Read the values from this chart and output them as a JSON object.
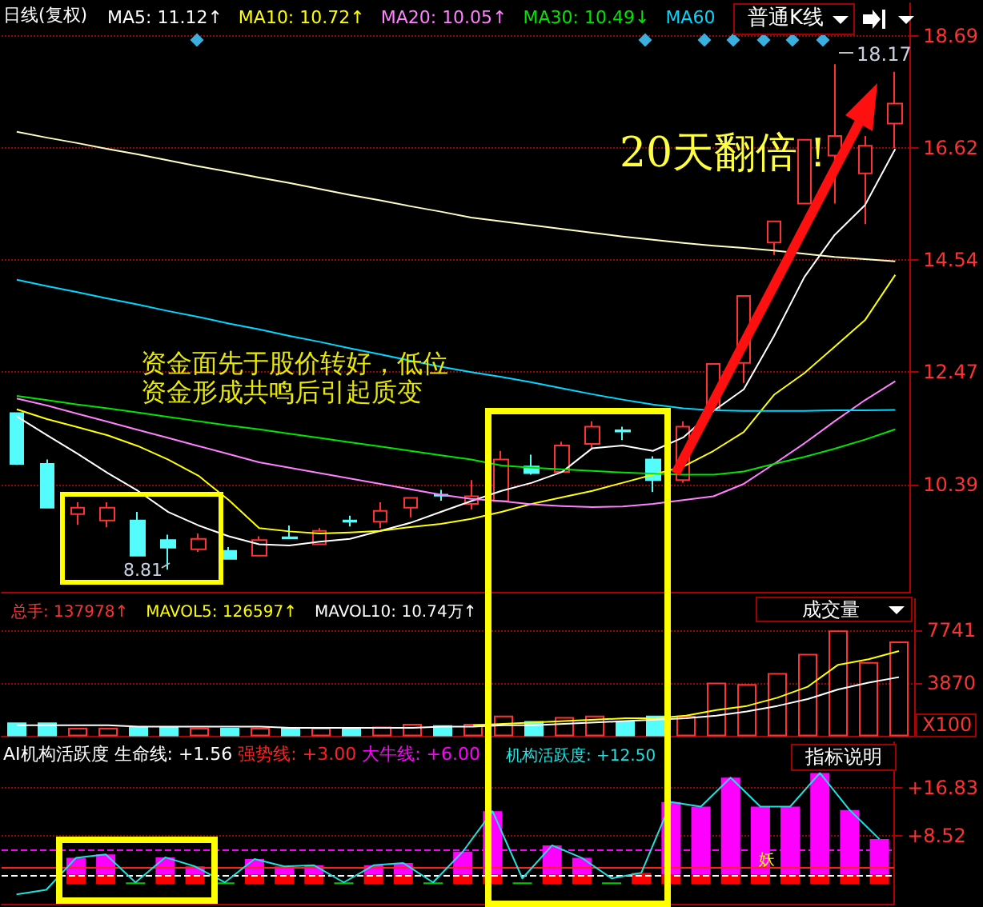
{
  "chart_data": [
    {
      "type": "candlestick",
      "title": "日线(复权)",
      "categories": [
        null,
        null,
        null,
        null,
        null,
        null,
        null,
        null,
        null,
        null,
        null,
        null,
        null,
        null,
        null,
        null,
        null,
        null,
        null,
        null,
        null,
        null,
        null,
        null,
        null,
        null,
        null,
        null,
        null,
        null
      ],
      "ohlc": [
        [
          11.71,
          11.72,
          10.75,
          10.77
        ],
        [
          10.77,
          10.85,
          9.96,
          9.96
        ],
        [
          9.84,
          10.06,
          9.64,
          9.96
        ],
        [
          9.72,
          10.06,
          9.6,
          9.96
        ],
        [
          9.72,
          9.88,
          9.07,
          9.07
        ],
        [
          9.36,
          9.46,
          8.81,
          9.22
        ],
        [
          9.19,
          9.48,
          9.14,
          9.38
        ],
        [
          9.16,
          9.23,
          9.0,
          9.01
        ],
        [
          9.07,
          9.43,
          9.07,
          9.36
        ],
        [
          9.41,
          9.63,
          9.39,
          9.39
        ],
        [
          9.28,
          9.58,
          9.28,
          9.53
        ],
        [
          9.72,
          9.81,
          9.61,
          9.7
        ],
        [
          9.7,
          10.06,
          9.58,
          9.9
        ],
        [
          9.96,
          10.15,
          9.78,
          10.14
        ],
        [
          10.2,
          10.29,
          10.09,
          10.18
        ],
        [
          10.03,
          10.47,
          9.93,
          10.17
        ],
        [
          10.08,
          11.01,
          10.08,
          10.85
        ],
        [
          10.72,
          10.94,
          10.57,
          10.6
        ],
        [
          10.62,
          11.18,
          10.62,
          11.11
        ],
        [
          11.14,
          11.56,
          11.04,
          11.46
        ],
        [
          11.39,
          11.46,
          11.21,
          11.37
        ],
        [
          10.85,
          10.91,
          10.25,
          10.47
        ],
        [
          10.47,
          11.56,
          10.42,
          11.46
        ],
        [
          11.77,
          12.62,
          11.77,
          12.62
        ],
        [
          12.64,
          13.88,
          12.27,
          13.88
        ],
        [
          14.87,
          15.26,
          14.64,
          15.26
        ],
        [
          15.59,
          16.77,
          15.59,
          16.77
        ],
        [
          16.48,
          18.17,
          15.59,
          16.84
        ],
        [
          16.15,
          16.84,
          15.21,
          16.66
        ],
        [
          17.07,
          18.03,
          16.62,
          17.44
        ]
      ],
      "colors": [
        "#54fcfc",
        "#54fcfc",
        "#ff3232",
        "#ff3232",
        "#54fcfc",
        "#54fcfc",
        "#ff3232",
        "#54fcfc",
        "#ff3232",
        "#54fcfc",
        "#ff3232",
        "#54fcfc",
        "#ff3232",
        "#ff3232",
        "#54fcfc",
        "#ff3232",
        "#ff3232",
        "#54fcfc",
        "#ff3232",
        "#ff3232",
        "#54fcfc",
        "#54fcfc",
        "#ff3232",
        "#ff3232",
        "#ff3232",
        "#ff3232",
        "#ff3232",
        "#ff3232",
        "#ff3232",
        "#ff3232"
      ],
      "series": [
        {
          "type": "line",
          "name": "MA5: 11.12↑",
          "color": "#ffffff",
          "values": [
            11.65,
            11.3,
            10.96,
            10.6,
            10.27,
            9.88,
            9.63,
            9.43,
            9.28,
            9.26,
            9.33,
            9.38,
            9.53,
            9.68,
            9.88,
            10.08,
            10.27,
            10.42,
            10.62,
            11.06,
            11.11,
            11.01,
            11.26,
            11.75,
            12.15,
            13.14,
            14.23,
            15.01,
            15.56,
            16.6
          ]
        },
        {
          "type": "line",
          "name": "MA10: 10.72↑",
          "color": "#ffff00",
          "values": [
            11.78,
            11.6,
            11.45,
            11.3,
            11.1,
            10.85,
            10.55,
            10.1,
            9.58,
            9.52,
            9.48,
            9.5,
            9.53,
            9.6,
            9.66,
            9.75,
            9.88,
            10.03,
            10.15,
            10.27,
            10.42,
            10.57,
            10.72,
            11.01,
            11.36,
            12.05,
            12.45,
            12.94,
            13.43,
            14.27
          ]
        },
        {
          "type": "line",
          "name": "MA20: 10.05↑",
          "color": "#ff80ff",
          "values": [
            11.98,
            11.85,
            11.7,
            11.55,
            11.4,
            11.25,
            11.1,
            10.95,
            10.8,
            10.7,
            10.6,
            10.5,
            10.4,
            10.3,
            10.2,
            10.12,
            10.08,
            10.02,
            9.99,
            9.97,
            9.98,
            10.03,
            10.1,
            10.17,
            10.4,
            10.77,
            11.15,
            11.56,
            11.95,
            12.3
          ]
        },
        {
          "type": "line",
          "name": "MA30: 10.49↓",
          "color": "#00e600",
          "values": [
            12.03,
            11.95,
            11.87,
            11.8,
            11.72,
            11.64,
            11.56,
            11.48,
            11.41,
            11.33,
            11.25,
            11.17,
            11.09,
            11.01,
            10.93,
            10.85,
            10.74,
            10.7,
            10.67,
            10.64,
            10.61,
            10.59,
            10.57,
            10.57,
            10.63,
            10.77,
            10.9,
            11.05,
            11.22,
            11.41
          ]
        },
        {
          "type": "line",
          "name": "MA60",
          "color": "#00d8ff",
          "values": [
            14.18,
            14.06,
            13.95,
            13.83,
            13.72,
            13.6,
            13.49,
            13.37,
            13.26,
            13.14,
            13.03,
            12.91,
            12.8,
            12.68,
            12.57,
            12.47,
            12.38,
            12.28,
            12.17,
            12.06,
            11.96,
            11.87,
            11.8,
            11.76,
            11.75,
            11.75,
            11.75,
            11.76,
            11.76,
            11.77
          ]
        },
        {
          "type": "line",
          "color": "#ffffc0",
          "values": [
            16.92,
            16.81,
            16.71,
            16.6,
            16.5,
            16.39,
            16.28,
            16.18,
            16.07,
            15.97,
            15.86,
            15.75,
            15.65,
            15.54,
            15.44,
            15.33,
            15.26,
            15.19,
            15.12,
            15.05,
            14.98,
            14.92,
            14.86,
            14.81,
            14.77,
            14.72,
            14.66,
            14.6,
            14.56,
            14.52
          ]
        }
      ],
      "ylim": [
        8.4,
        19.3
      ],
      "yticks": [
        10.39,
        12.47,
        14.54,
        16.62,
        18.69
      ],
      "grid": "y",
      "tick_labels": "y",
      "legend": "top left",
      "marker": "none",
      "line_style": "solid",
      "annotations": [
        "资金面先于股价转好，低位资金形成共鸣后引起质变",
        "20天翻倍！",
        "8.81",
        "18.17",
        "普通K线"
      ]
    },
    {
      "type": "bar",
      "categories": [
        null,
        null,
        null,
        null,
        null,
        null,
        null,
        null,
        null,
        null,
        null,
        null,
        null,
        null,
        null,
        null,
        null,
        null,
        null,
        null,
        null,
        null,
        null,
        null,
        null,
        null,
        null,
        null,
        null,
        null
      ],
      "series": [
        {
          "name": "总手: 137978↑",
          "color": "#ff3232",
          "colors": [
            "#54fcfc",
            "#54fcfc",
            "#ff3232",
            "#ff3232",
            "#54fcfc",
            "#54fcfc",
            "#ff3232",
            "#54fcfc",
            "#ff3232",
            "#54fcfc",
            "#ff3232",
            "#54fcfc",
            "#ff3232",
            "#ff3232",
            "#54fcfc",
            "#ff3232",
            "#ff3232",
            "#54fcfc",
            "#ff3232",
            "#ff3232",
            "#54fcfc",
            "#54fcfc",
            "#ff3232",
            "#ff3232",
            "#ff3232",
            "#ff3232",
            "#ff3232",
            "#ff3232",
            "#ff3232",
            "#ff3232"
          ],
          "values": [
            1000,
            1000,
            600,
            600,
            700,
            700,
            600,
            600,
            600,
            600,
            600,
            600,
            700,
            900,
            800,
            900,
            1500,
            1100,
            1400,
            1500,
            1100,
            1500,
            1500,
            3900,
            3800,
            4600,
            6000,
            7700,
            5400,
            6900
          ]
        },
        {
          "type": "line",
          "name": "MAVOL5: 126597↑",
          "color": "#ffff00",
          "values": [
            null,
            null,
            null,
            null,
            null,
            null,
            null,
            null,
            null,
            null,
            null,
            null,
            null,
            null,
            null,
            800,
            900,
            1000,
            1100,
            1200,
            1300,
            1300,
            1500,
            1900,
            2200,
            2800,
            3600,
            5200,
            5600,
            6200
          ]
        },
        {
          "type": "line",
          "name": "MAVOL10: 10.74万↑",
          "color": "#ffffff",
          "values": [
            800,
            800,
            800,
            800,
            700,
            700,
            700,
            700,
            700,
            600,
            600,
            600,
            600,
            600,
            700,
            700,
            800,
            800,
            900,
            1000,
            1100,
            1200,
            1300,
            1500,
            1800,
            2200,
            2700,
            3400,
            3900,
            4300
          ]
        }
      ],
      "ylim": [
        0,
        10000
      ],
      "yticks": [
        3870,
        7741
      ],
      "grid": "y",
      "tick_labels": "y",
      "legend": "top left",
      "marker": "none",
      "line_style": "solid",
      "annotations": [
        "成交量",
        "X100"
      ]
    },
    {
      "type": "bar",
      "title": "AI机构活跃度",
      "categories": [
        null,
        null,
        null,
        null,
        null,
        null,
        null,
        null,
        null,
        null,
        null,
        null,
        null,
        null,
        null,
        null,
        null,
        null,
        null,
        null,
        null,
        null,
        null,
        null,
        null,
        null,
        null,
        null,
        null,
        null
      ],
      "stacked": true,
      "series": [
        {
          "color": "#ff0000",
          "values": [
            null,
            null,
            1.7,
            1.7,
            null,
            1.7,
            1.7,
            null,
            1.7,
            1.7,
            1.7,
            null,
            1.7,
            1.7,
            null,
            1.7,
            1.7,
            null,
            1.7,
            1.7,
            null,
            2.0,
            1.7,
            1.7,
            1.7,
            1.7,
            1.7,
            1.7,
            1.7,
            1.7
          ]
        },
        {
          "color": "#00c800",
          "values": [
            null,
            null,
            null,
            null,
            0.3,
            null,
            null,
            0.3,
            null,
            null,
            null,
            0.3,
            null,
            null,
            0.3,
            null,
            null,
            0.3,
            null,
            null,
            0.3,
            null,
            null,
            null,
            null,
            null,
            null,
            null,
            null,
            null
          ]
        },
        {
          "color": "#ff00ff",
          "values": [
            null,
            null,
            2.9,
            3.5,
            null,
            3.0,
            1.4,
            null,
            2.7,
            1.4,
            1.6,
            null,
            1.6,
            2.0,
            null,
            4.0,
            11.1,
            null,
            5.1,
            2.9,
            null,
            null,
            12.7,
            11.9,
            17.0,
            11.9,
            11.9,
            17.8,
            11.3,
            6.2
          ]
        },
        {
          "type": "line",
          "name": "机构活跃度: +12.50",
          "color": "#20e0e0",
          "values": [
            -1.8,
            -1.0,
            4.6,
            5.2,
            0.3,
            4.7,
            3.1,
            0.3,
            4.4,
            3.1,
            3.3,
            0.3,
            3.3,
            3.7,
            0.3,
            5.7,
            12.8,
            1.0,
            6.8,
            4.6,
            1.0,
            2.0,
            14.4,
            13.6,
            18.7,
            13.6,
            13.6,
            19.5,
            13.0,
            7.9
          ]
        }
      ],
      "ref_lines": [
        {
          "axis": "y",
          "value": 1.56,
          "label": "生命线: +1.56",
          "color": "#ffffff",
          "line_style": "dashed"
        },
        {
          "axis": "y",
          "value": 3,
          "label": "强势线: +3.00",
          "color": "#ff2020",
          "line_style": "solid"
        },
        {
          "axis": "y",
          "value": 6,
          "label": "大牛线: +6.00",
          "color": "#ff00ff",
          "line_style": "dashed"
        }
      ],
      "ylim": [
        -3.4,
        24.9
      ],
      "yticks": [
        {
          "value": 8.52,
          "label": "+8.52"
        },
        {
          "value": 16.83,
          "label": "+16.83"
        }
      ],
      "grid": "y",
      "tick_labels": "y",
      "legend": "top left",
      "marker": "none",
      "line_style": "solid",
      "annotations": [
        "指标说明",
        "妖"
      ]
    }
  ]
}
